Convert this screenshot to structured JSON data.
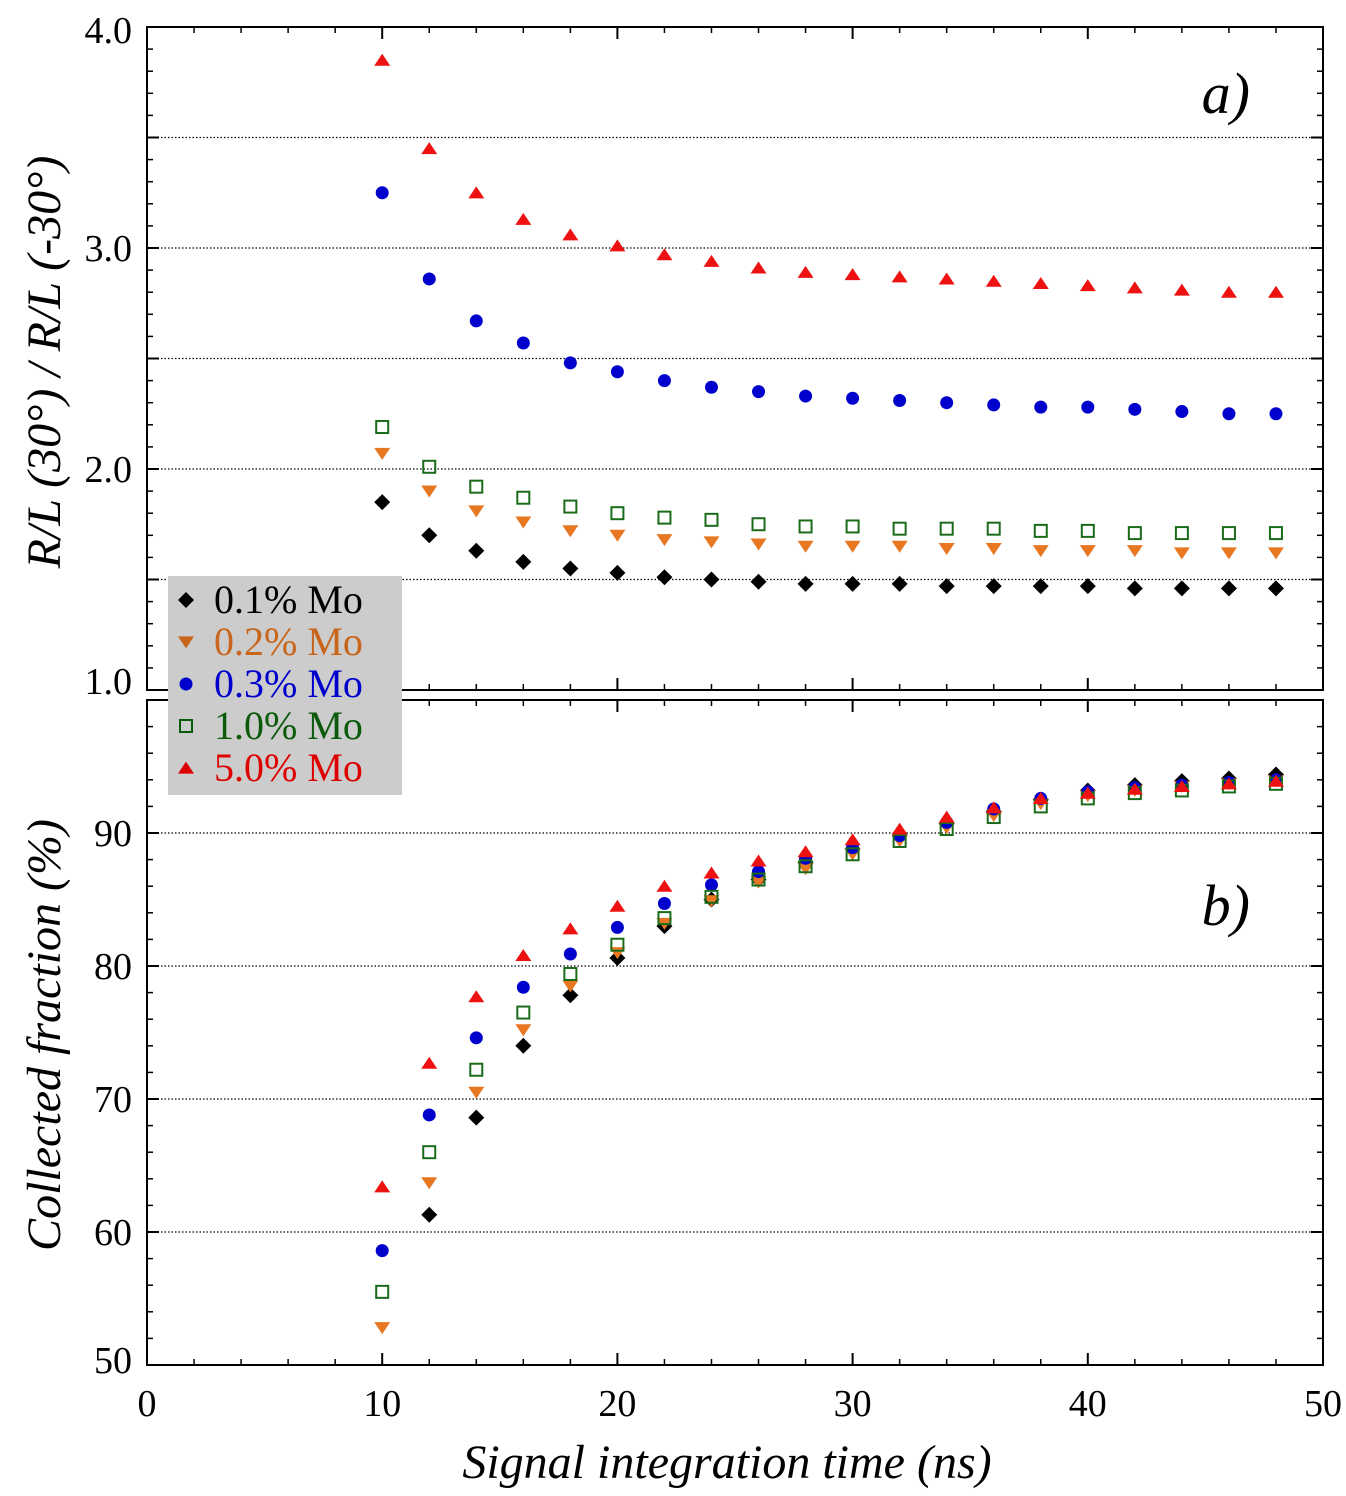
{
  "chart_data": [
    {
      "type": "scatter",
      "panel_label": "a)",
      "ylabel": "R/L (30°) / R/L (-30°)",
      "ylim": [
        1.0,
        4.0
      ],
      "yticks": [
        "1.0",
        "2.0",
        "3.0",
        "4.0"
      ],
      "grid": "horizontal dotted",
      "x": [
        10,
        12,
        14,
        16,
        18,
        20,
        22,
        24,
        26,
        28,
        30,
        32,
        34,
        36,
        38,
        40,
        42,
        44,
        46,
        48
      ],
      "series": [
        {
          "name": "0.1% Mo",
          "color": "#000000",
          "marker": "diamond",
          "values": [
            1.85,
            1.7,
            1.63,
            1.58,
            1.55,
            1.53,
            1.51,
            1.5,
            1.49,
            1.48,
            1.48,
            1.48,
            1.47,
            1.47,
            1.47,
            1.47,
            1.46,
            1.46,
            1.46,
            1.46
          ]
        },
        {
          "name": "0.2% Mo",
          "color": "#e87722",
          "marker": "triangle-down",
          "values": [
            2.07,
            1.9,
            1.81,
            1.76,
            1.72,
            1.7,
            1.68,
            1.67,
            1.66,
            1.65,
            1.65,
            1.65,
            1.64,
            1.64,
            1.63,
            1.63,
            1.63,
            1.62,
            1.62,
            1.62
          ]
        },
        {
          "name": "0.3% Mo",
          "color": "#0000cc",
          "marker": "circle",
          "values": [
            3.25,
            2.86,
            2.67,
            2.57,
            2.48,
            2.44,
            2.4,
            2.37,
            2.35,
            2.33,
            2.32,
            2.31,
            2.3,
            2.29,
            2.28,
            2.28,
            2.27,
            2.26,
            2.25,
            2.25
          ]
        },
        {
          "name": "1.0% Mo",
          "color": "#1a6b1a",
          "marker": "square-open",
          "values": [
            2.19,
            2.01,
            1.92,
            1.87,
            1.83,
            1.8,
            1.78,
            1.77,
            1.75,
            1.74,
            1.74,
            1.73,
            1.73,
            1.73,
            1.72,
            1.72,
            1.71,
            1.71,
            1.71,
            1.71
          ]
        },
        {
          "name": "5.0% Mo",
          "color": "#ee1111",
          "marker": "triangle-up",
          "values": [
            3.85,
            3.45,
            3.25,
            3.13,
            3.06,
            3.01,
            2.97,
            2.94,
            2.91,
            2.89,
            2.88,
            2.87,
            2.86,
            2.85,
            2.84,
            2.83,
            2.82,
            2.81,
            2.8,
            2.8
          ]
        }
      ]
    },
    {
      "type": "scatter",
      "panel_label": "b)",
      "ylabel": "Collected fraction (%)",
      "xlabel": "Signal integration time (ns)",
      "xlim": [
        0,
        50
      ],
      "xticks": [
        "0",
        "10",
        "20",
        "30",
        "40",
        "50"
      ],
      "ylim": [
        50,
        100
      ],
      "yticks": [
        "50",
        "60",
        "70",
        "80",
        "90"
      ],
      "grid": "horizontal dotted",
      "x": [
        10,
        12,
        14,
        16,
        18,
        20,
        22,
        24,
        26,
        28,
        30,
        32,
        34,
        36,
        38,
        40,
        42,
        44,
        46,
        48
      ],
      "series": [
        {
          "name": "0.1% Mo",
          "color": "#000000",
          "marker": "diamond",
          "values": [
            null,
            61.3,
            68.6,
            74.0,
            77.8,
            80.6,
            83.0,
            85.0,
            86.5,
            87.8,
            88.8,
            89.8,
            90.7,
            91.6,
            92.5,
            93.2,
            93.6,
            93.9,
            94.1,
            94.4
          ]
        },
        {
          "name": "0.2% Mo",
          "color": "#e87722",
          "marker": "triangle-down",
          "values": [
            52.8,
            63.7,
            70.5,
            75.2,
            78.5,
            81.0,
            83.2,
            84.9,
            86.3,
            87.3,
            88.4,
            89.4,
            90.4,
            91.3,
            92.2,
            92.8,
            93.2,
            93.5,
            93.7,
            93.9
          ]
        },
        {
          "name": "0.3% Mo",
          "color": "#0000cc",
          "marker": "circle",
          "values": [
            58.6,
            68.8,
            74.6,
            78.4,
            80.9,
            82.9,
            84.7,
            86.1,
            87.1,
            88.1,
            88.9,
            89.8,
            90.8,
            91.8,
            92.6,
            93.1,
            93.4,
            93.6,
            93.8,
            94.0
          ]
        },
        {
          "name": "1.0% Mo",
          "color": "#1a6b1a",
          "marker": "square-open",
          "values": [
            55.5,
            66.0,
            72.2,
            76.5,
            79.4,
            81.6,
            83.6,
            85.2,
            86.5,
            87.5,
            88.4,
            89.4,
            90.3,
            91.2,
            92.0,
            92.6,
            93.0,
            93.2,
            93.5,
            93.7
          ]
        },
        {
          "name": "5.0% Mo",
          "color": "#ee1111",
          "marker": "triangle-up",
          "values": [
            63.4,
            72.7,
            77.7,
            80.8,
            82.8,
            84.5,
            86.0,
            87.0,
            87.9,
            88.6,
            89.5,
            90.3,
            91.2,
            91.9,
            92.6,
            93.0,
            93.3,
            93.5,
            93.7,
            93.9
          ]
        }
      ]
    }
  ],
  "legend": {
    "placement": "left, between panels",
    "background": "#cccccc",
    "items": [
      {
        "label": "0.1% Mo",
        "color": "#000000",
        "marker": "diamond"
      },
      {
        "label": "0.2% Mo",
        "color": "#c8651a",
        "marker": "triangle-down"
      },
      {
        "label": "0.3% Mo",
        "color": "#0000cc",
        "marker": "circle"
      },
      {
        "label": "1.0% Mo",
        "color": "#0a5a0a",
        "marker": "square-open"
      },
      {
        "label": "5.0% Mo",
        "color": "#dd0000",
        "marker": "triangle-up"
      }
    ]
  }
}
